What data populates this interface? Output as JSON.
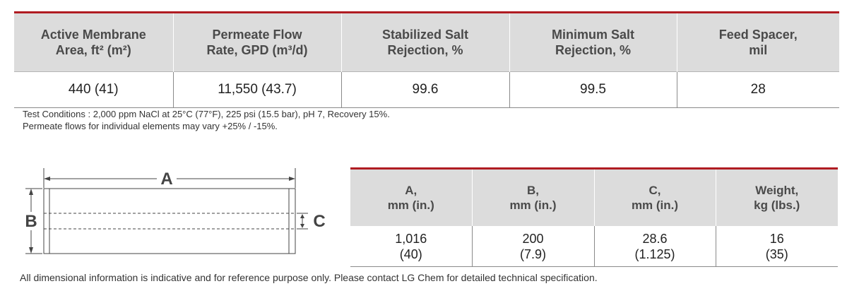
{
  "spec_table": {
    "headers": [
      [
        "Active Membrane",
        "Area, ft² (m²)"
      ],
      [
        "Permeate Flow",
        "Rate, GPD (m³/d)"
      ],
      [
        "Stabilized Salt",
        "Rejection, %"
      ],
      [
        "Minimum Salt",
        "Rejection, %"
      ],
      [
        "Feed Spacer,",
        "mil"
      ]
    ],
    "row": [
      "440 (41)",
      "11,550 (43.7)",
      "99.6",
      "99.5",
      "28"
    ]
  },
  "notes": {
    "line1": "Test Conditions : 2,000 ppm NaCl at 25°C (77°F), 225 psi (15.5 bar), pH 7, Recovery 15%.",
    "line2": "Permeate flows for individual elements may vary +25% / -15%."
  },
  "diagram": {
    "label_a": "A",
    "label_b": "B",
    "label_c": "C"
  },
  "dim_table": {
    "headers": [
      [
        "A,",
        "mm (in.)"
      ],
      [
        "B,",
        "mm (in.)"
      ],
      [
        "C,",
        "mm (in.)"
      ],
      [
        "Weight,",
        "kg (lbs.)"
      ]
    ],
    "row": [
      [
        "1,016",
        "(40)"
      ],
      [
        "200",
        "(7.9)"
      ],
      [
        "28.6",
        "(1.125)"
      ],
      [
        "16",
        "(35)"
      ]
    ]
  },
  "disclaimer": "All dimensional information is indicative and for reference purpose only. Please contact LG Chem for detailed technical specification.",
  "colors": {
    "accent_red": "#b01c22",
    "header_gray": "#dcdcdc",
    "header_text": "#4a4a4a"
  }
}
